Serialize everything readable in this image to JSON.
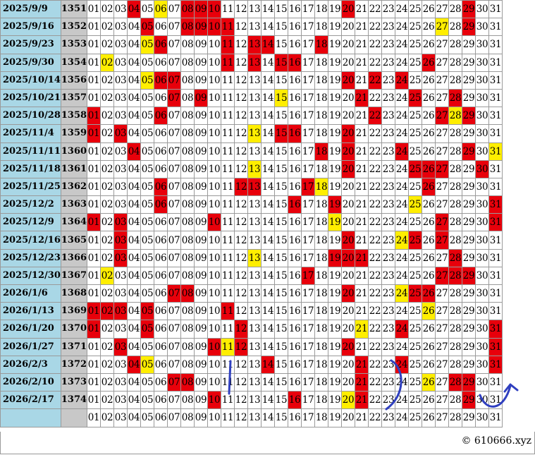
{
  "rows": [
    {
      "date": "2025/9/9",
      "issue": "1351",
      "red": [
        4,
        8,
        9,
        10,
        20,
        29
      ],
      "yellow": [
        6
      ]
    },
    {
      "date": "2025/9/16",
      "issue": "1352",
      "red": [
        5,
        8,
        9,
        10,
        11,
        29
      ],
      "yellow": [
        27
      ]
    },
    {
      "date": "2025/9/23",
      "issue": "1353",
      "red": [
        6,
        11,
        13,
        14,
        18
      ],
      "yellow": [
        5
      ]
    },
    {
      "date": "2025/9/30",
      "issue": "1354",
      "red": [
        11,
        13,
        15,
        16,
        26
      ],
      "yellow": [
        2
      ]
    },
    {
      "date": "2025/10/14",
      "issue": "1356",
      "red": [
        6,
        7,
        20,
        22,
        24
      ],
      "yellow": [
        5
      ]
    },
    {
      "date": "2025/10/21",
      "issue": "1357",
      "red": [
        7,
        9,
        21,
        25,
        28
      ],
      "yellow": [
        15
      ]
    },
    {
      "date": "2025/10/28",
      "issue": "1358",
      "red": [
        1,
        6,
        22,
        27,
        29
      ],
      "yellow": [
        28
      ]
    },
    {
      "date": "2025/11/4",
      "issue": "1359",
      "red": [
        1,
        3,
        15,
        16,
        20
      ],
      "yellow": [
        13
      ]
    },
    {
      "date": "2025/11/11",
      "issue": "1360",
      "red": [
        4,
        18,
        20,
        24,
        29
      ],
      "yellow": [
        31
      ]
    },
    {
      "date": "2025/11/18",
      "issue": "1361",
      "red": [
        20,
        25,
        26,
        27,
        30
      ],
      "yellow": [
        13
      ]
    },
    {
      "date": "2025/11/25",
      "issue": "1362",
      "red": [
        6,
        12,
        13,
        17,
        26
      ],
      "yellow": [
        18
      ]
    },
    {
      "date": "2025/12/2",
      "issue": "1363",
      "red": [
        6,
        16,
        19,
        31
      ],
      "yellow": [
        25
      ]
    },
    {
      "date": "2025/12/9",
      "issue": "1364",
      "red": [
        1,
        3,
        10,
        27,
        31
      ],
      "yellow": [
        19
      ]
    },
    {
      "date": "2025/12/16",
      "issue": "1365",
      "red": [
        3,
        20,
        25,
        27
      ],
      "yellow": [
        24
      ]
    },
    {
      "date": "2025/12/23",
      "issue": "1366",
      "red": [
        3,
        19,
        20,
        21,
        28
      ],
      "yellow": [
        13
      ]
    },
    {
      "date": "2025/12/30",
      "issue": "1367",
      "red": [
        17,
        27,
        28,
        29
      ],
      "yellow": [
        2
      ]
    },
    {
      "date": "2026/1/6",
      "issue": "1368",
      "red": [
        7,
        8,
        20,
        25,
        26
      ],
      "yellow": [
        24
      ]
    },
    {
      "date": "2026/1/13",
      "issue": "1369",
      "red": [
        1,
        2,
        3,
        5,
        11
      ],
      "yellow": [
        26
      ]
    },
    {
      "date": "2026/1/20",
      "issue": "1370",
      "red": [
        1,
        5,
        12,
        24,
        31
      ],
      "yellow": [
        21
      ]
    },
    {
      "date": "2026/1/27",
      "issue": "1371",
      "red": [
        3,
        10,
        12,
        20,
        31
      ],
      "yellow": [
        11
      ]
    },
    {
      "date": "2026/2/3",
      "issue": "1372",
      "red": [
        4,
        14,
        21,
        24,
        31
      ],
      "yellow": [
        5
      ]
    },
    {
      "date": "2026/2/10",
      "issue": "1373",
      "red": [
        7,
        8,
        21,
        28,
        29
      ],
      "yellow": [
        26
      ]
    },
    {
      "date": "2026/2/17",
      "issue": "1374",
      "red": [
        10,
        16,
        21,
        29
      ],
      "yellow": [
        20
      ]
    }
  ],
  "footer_numbers": [
    "01",
    "02",
    "03",
    "04",
    "05",
    "06",
    "07",
    "08",
    "09",
    "10",
    "11",
    "12",
    "13",
    "14",
    "15",
    "16",
    "17",
    "18",
    "19",
    "20",
    "21",
    "22",
    "23",
    "24",
    "25",
    "26",
    "27",
    "28",
    "29",
    "30",
    "31"
  ],
  "copyright": "© 610666.xyz",
  "colors": {
    "red": "#e8000b",
    "yellow": "#ffee00",
    "date_bg": "#a9d7e6",
    "issue_bg": "#c8c8c8",
    "ink": "#2f3fbf"
  },
  "annotations": [
    "vertical-stroke",
    "closing-parenthesis",
    "curved-arrow"
  ]
}
